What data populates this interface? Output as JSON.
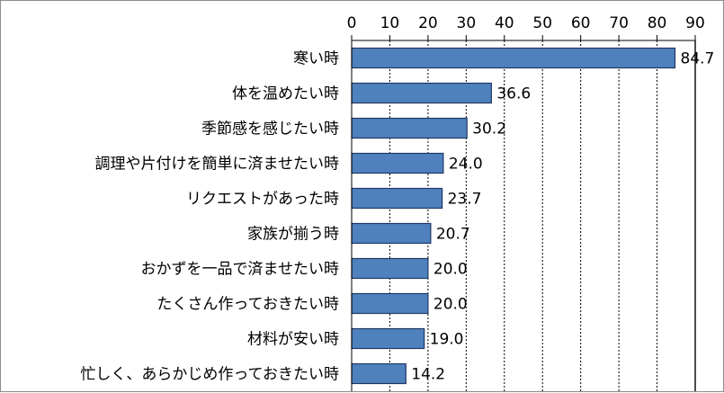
{
  "chart_data": {
    "type": "bar",
    "orientation": "horizontal",
    "categories": [
      "寒い時",
      "体を温めたい時",
      "季節感を感じたい時",
      "調理や片付けを簡単に済ませたい時",
      "リクエストがあった時",
      "家族が揃う時",
      "おかずを一品で済ませたい時",
      "たくさん作っておきたい時",
      "材料が安い時",
      "忙しく、あらかじめ作っておきたい時"
    ],
    "values": [
      84.7,
      36.6,
      30.2,
      24.0,
      23.7,
      20.7,
      20.0,
      20.0,
      19.0,
      14.2
    ],
    "value_labels": [
      "84.7",
      "36.6",
      "30.2",
      "24.0",
      "23.7",
      "20.7",
      "20.0",
      "20.0",
      "19.0",
      "14.2"
    ],
    "xlim": [
      0,
      90
    ],
    "ticks": [
      "0",
      "10",
      "20",
      "30",
      "40",
      "50",
      "60",
      "70",
      "80",
      "90"
    ],
    "axis_position": "top",
    "grid": "vertical dashed",
    "bar_color": "#4f81bd",
    "bar_border_color": "#1f3864"
  }
}
